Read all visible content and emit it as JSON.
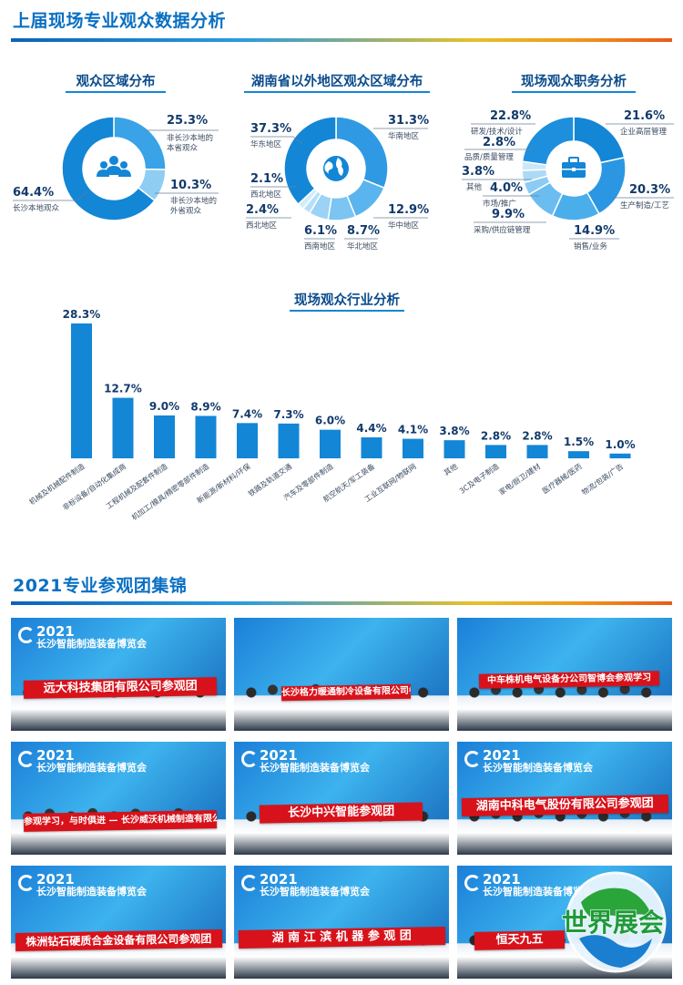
{
  "section1": {
    "title": "上届现场专业观众数据分析"
  },
  "donut1": {
    "title": "观众区域分布",
    "icon": "people-icon",
    "slices": [
      {
        "pct": "64.4%",
        "value": 64.4,
        "label": "长沙本地观众",
        "color": "#1386d6"
      },
      {
        "pct": "25.3%",
        "value": 25.3,
        "label": "非长沙本地的本省观众",
        "label_lines": [
          "非长沙本地的",
          "本省观众"
        ],
        "color": "#3aa2e6"
      },
      {
        "pct": "10.3%",
        "value": 10.3,
        "label": "非长沙本地的外省观众",
        "label_lines": [
          "非长沙本地的",
          "外省观众"
        ],
        "color": "#8fcdf3"
      }
    ]
  },
  "donut2": {
    "title": "湖南省以外地区观众区域分布",
    "icon": "globe-icon",
    "slices": [
      {
        "pct": "37.3%",
        "value": 37.3,
        "label": "华东地区",
        "color": "#1386d6"
      },
      {
        "pct": "31.3%",
        "value": 31.3,
        "label": "华南地区",
        "color": "#2f9ae3"
      },
      {
        "pct": "12.9%",
        "value": 12.9,
        "label": "华中地区",
        "color": "#5ab5ee"
      },
      {
        "pct": "8.7%",
        "value": 8.7,
        "label": "华北地区",
        "color": "#7cc4f2"
      },
      {
        "pct": "6.1%",
        "value": 6.1,
        "label": "西南地区",
        "color": "#9ad3f5"
      },
      {
        "pct": "2.4%",
        "value": 2.4,
        "label": "西北地区",
        "color": "#b7e0f8"
      },
      {
        "pct": "2.1%",
        "value": 2.1,
        "label": "西北地区",
        "color": "#d2ecfb"
      }
    ]
  },
  "donut3": {
    "title": "现场观众职务分析",
    "icon": "briefcase-icon",
    "slices": [
      {
        "pct": "21.6%",
        "value": 21.6,
        "label": "企业高层管理",
        "color": "#1386d6"
      },
      {
        "pct": "20.3%",
        "value": 20.3,
        "label": "生产制造/工艺",
        "color": "#2b97e2"
      },
      {
        "pct": "14.9%",
        "value": 14.9,
        "label": "销售/业务",
        "color": "#4aaeeb"
      },
      {
        "pct": "9.9%",
        "value": 9.9,
        "label": "采购/供应链管理",
        "color": "#6bbdf0"
      },
      {
        "pct": "4.0%",
        "value": 4.0,
        "label": "市场/推广",
        "color": "#8ccbf3"
      },
      {
        "pct": "3.8%",
        "value": 3.8,
        "label": "其他",
        "color": "#acdaf6"
      },
      {
        "pct": "2.8%",
        "value": 2.8,
        "label": "品质/质量管理",
        "color": "#cbe8f9"
      },
      {
        "pct": "22.8%",
        "value": 22.8,
        "label": "研发/技术/设计",
        "color": "#1d8fdc"
      }
    ]
  },
  "chart_data": {
    "type": "bar",
    "title": "现场观众行业分析",
    "categories": [
      "机械及机械配件制造",
      "非标设备/自动化集成商",
      "工程机械及配套件制造",
      "机加工/模具/精密零部件制造",
      "新能源/新材料/环保",
      "铁路及轨道交通",
      "汽车及零部件制造",
      "航空航天/军工装备",
      "工业互联网/物联网",
      "其他",
      "3C及电子制造",
      "家电/厨卫/建材",
      "医疗器械/医药",
      "物流/包装/广告"
    ],
    "values": [
      28.3,
      12.7,
      9.0,
      8.9,
      7.4,
      7.3,
      6.0,
      4.4,
      4.1,
      3.8,
      2.8,
      2.8,
      1.5,
      1.0
    ],
    "value_labels": [
      "28.3%",
      "12.7%",
      "9.0%",
      "8.9%",
      "7.4%",
      "7.3%",
      "6.0%",
      "4.4%",
      "4.1%",
      "3.8%",
      "2.8%",
      "2.8%",
      "1.5%",
      "1.0%"
    ],
    "ylim": [
      0,
      30
    ],
    "color": "#1386d6"
  },
  "section2": {
    "title": "2021专业参观团集锦"
  },
  "photos": [
    {
      "banner": "远大科技集团有限公司参观团",
      "expo_year": "2021",
      "expo_name": "长沙智能制造装备博览会"
    },
    {
      "banner": "长沙格力暖通制冷设备有限公司参观团",
      "expo_year": "",
      "expo_name": ""
    },
    {
      "banner": "中车株机电气设备分公司智博会参观学习",
      "expo_year": "",
      "expo_name": ""
    },
    {
      "banner": "参观学习，与时俱进 — 长沙威沃机械制造有限公司",
      "expo_year": "2021",
      "expo_name": "长沙智能制造装备博览会"
    },
    {
      "banner": "长沙中兴智能参观团",
      "expo_year": "2021",
      "expo_name": "长沙智能制造装备博览会"
    },
    {
      "banner": "湖南中科电气股份有限公司参观团",
      "expo_year": "2021",
      "expo_name": "长沙智能制造装备博览会"
    },
    {
      "banner": "株洲钻石硬质合金设备有限公司参观团",
      "expo_year": "2021",
      "expo_name": "长沙智能制造装备博览会"
    },
    {
      "banner": "湖 南 江 滨 机 器 参 观 团",
      "expo_year": "2021",
      "expo_name": "长沙智能制造装备博览会"
    },
    {
      "banner": "恒天九五",
      "expo_year": "2021",
      "expo_name": "长沙智能制造装备博览会"
    }
  ],
  "watermark": {
    "text": "世界展会",
    "colors": [
      "#2aa53a",
      "#1a7fd0"
    ]
  }
}
